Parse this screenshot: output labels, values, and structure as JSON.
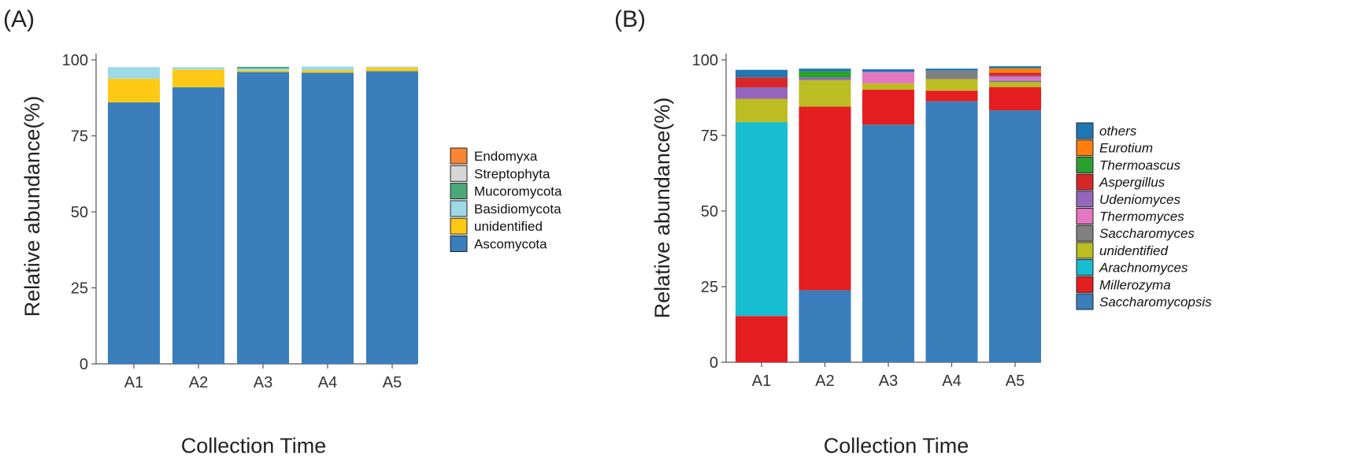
{
  "chart_data": [
    {
      "panel_label": "(A)",
      "type": "bar",
      "stacked": true,
      "xlabel": "Collection  Time",
      "ylabel": "Relative abundance(%)",
      "ylim": [
        0,
        100
      ],
      "yticks": [
        0,
        25,
        50,
        75,
        100
      ],
      "categories": [
        "A1",
        "A2",
        "A3",
        "A4",
        "A5"
      ],
      "series": [
        {
          "name": "Ascomycota",
          "color": "#3a7ebb",
          "values": [
            86,
            91,
            96,
            95.8,
            96.3
          ]
        },
        {
          "name": "unidentified",
          "color": "#fdc915",
          "values": [
            7.8,
            5.8,
            0.5,
            0.8,
            1.2
          ]
        },
        {
          "name": "Basidiomycota",
          "color": "#9ed9e6",
          "values": [
            3.8,
            0.8,
            0.6,
            1.2,
            0.3
          ]
        },
        {
          "name": "Mucoromycota",
          "color": "#4aa97a",
          "values": [
            0,
            0,
            0.6,
            0,
            0
          ]
        },
        {
          "name": "Streptophyta",
          "color": "#d6d6d6",
          "values": [
            0,
            0,
            0,
            0,
            0
          ]
        },
        {
          "name": "Endomyxa",
          "color": "#f78531",
          "values": [
            0,
            0,
            0,
            0,
            0
          ]
        }
      ],
      "legend_italic": false,
      "legend_position": "right"
    },
    {
      "panel_label": "(B)",
      "type": "bar",
      "stacked": true,
      "xlabel": "Collection  Time",
      "ylabel": "Relative abundance(%)",
      "ylim": [
        0,
        100
      ],
      "yticks": [
        0,
        25,
        50,
        75,
        100
      ],
      "categories": [
        "A1",
        "A2",
        "A3",
        "A4",
        "A5"
      ],
      "series": [
        {
          "name": "Saccharomycopsis",
          "color": "#3a7ebb",
          "values": [
            0,
            23.8,
            78.6,
            86.3,
            83.3
          ]
        },
        {
          "name": "Millerozyma",
          "color": "#e41e21",
          "values": [
            15.3,
            60.7,
            11.5,
            3.5,
            7.7
          ]
        },
        {
          "name": "Arachnomyces",
          "color": "#17becf",
          "values": [
            64.1,
            0,
            0,
            0,
            0
          ]
        },
        {
          "name": "unidentified",
          "color": "#bcbd22",
          "values": [
            7.7,
            8.8,
            2.1,
            3.8,
            1.6
          ]
        },
        {
          "name": "Saccharomyces",
          "color": "#808080",
          "values": [
            0,
            0,
            0,
            2.9,
            0.5
          ]
        },
        {
          "name": "Thermomyces",
          "color": "#e377c2",
          "values": [
            0,
            0,
            3.8,
            0,
            1.2
          ]
        },
        {
          "name": "Udeniomyces",
          "color": "#9467bd",
          "values": [
            3.8,
            0.8,
            0,
            0,
            0.5
          ]
        },
        {
          "name": "Aspergillus",
          "color": "#d62728",
          "values": [
            3.3,
            0,
            0,
            0,
            0.9
          ]
        },
        {
          "name": "Thermoascus",
          "color": "#2ca02c",
          "values": [
            0,
            2.1,
            0,
            0,
            0
          ]
        },
        {
          "name": "Eurotium",
          "color": "#ff7f0e",
          "values": [
            0,
            0,
            0,
            0,
            1.5
          ]
        },
        {
          "name": "others",
          "color": "#1f77b4",
          "values": [
            2.5,
            0.9,
            0.9,
            0.6,
            0.7
          ]
        }
      ],
      "legend_italic": true,
      "legend_position": "right"
    }
  ]
}
